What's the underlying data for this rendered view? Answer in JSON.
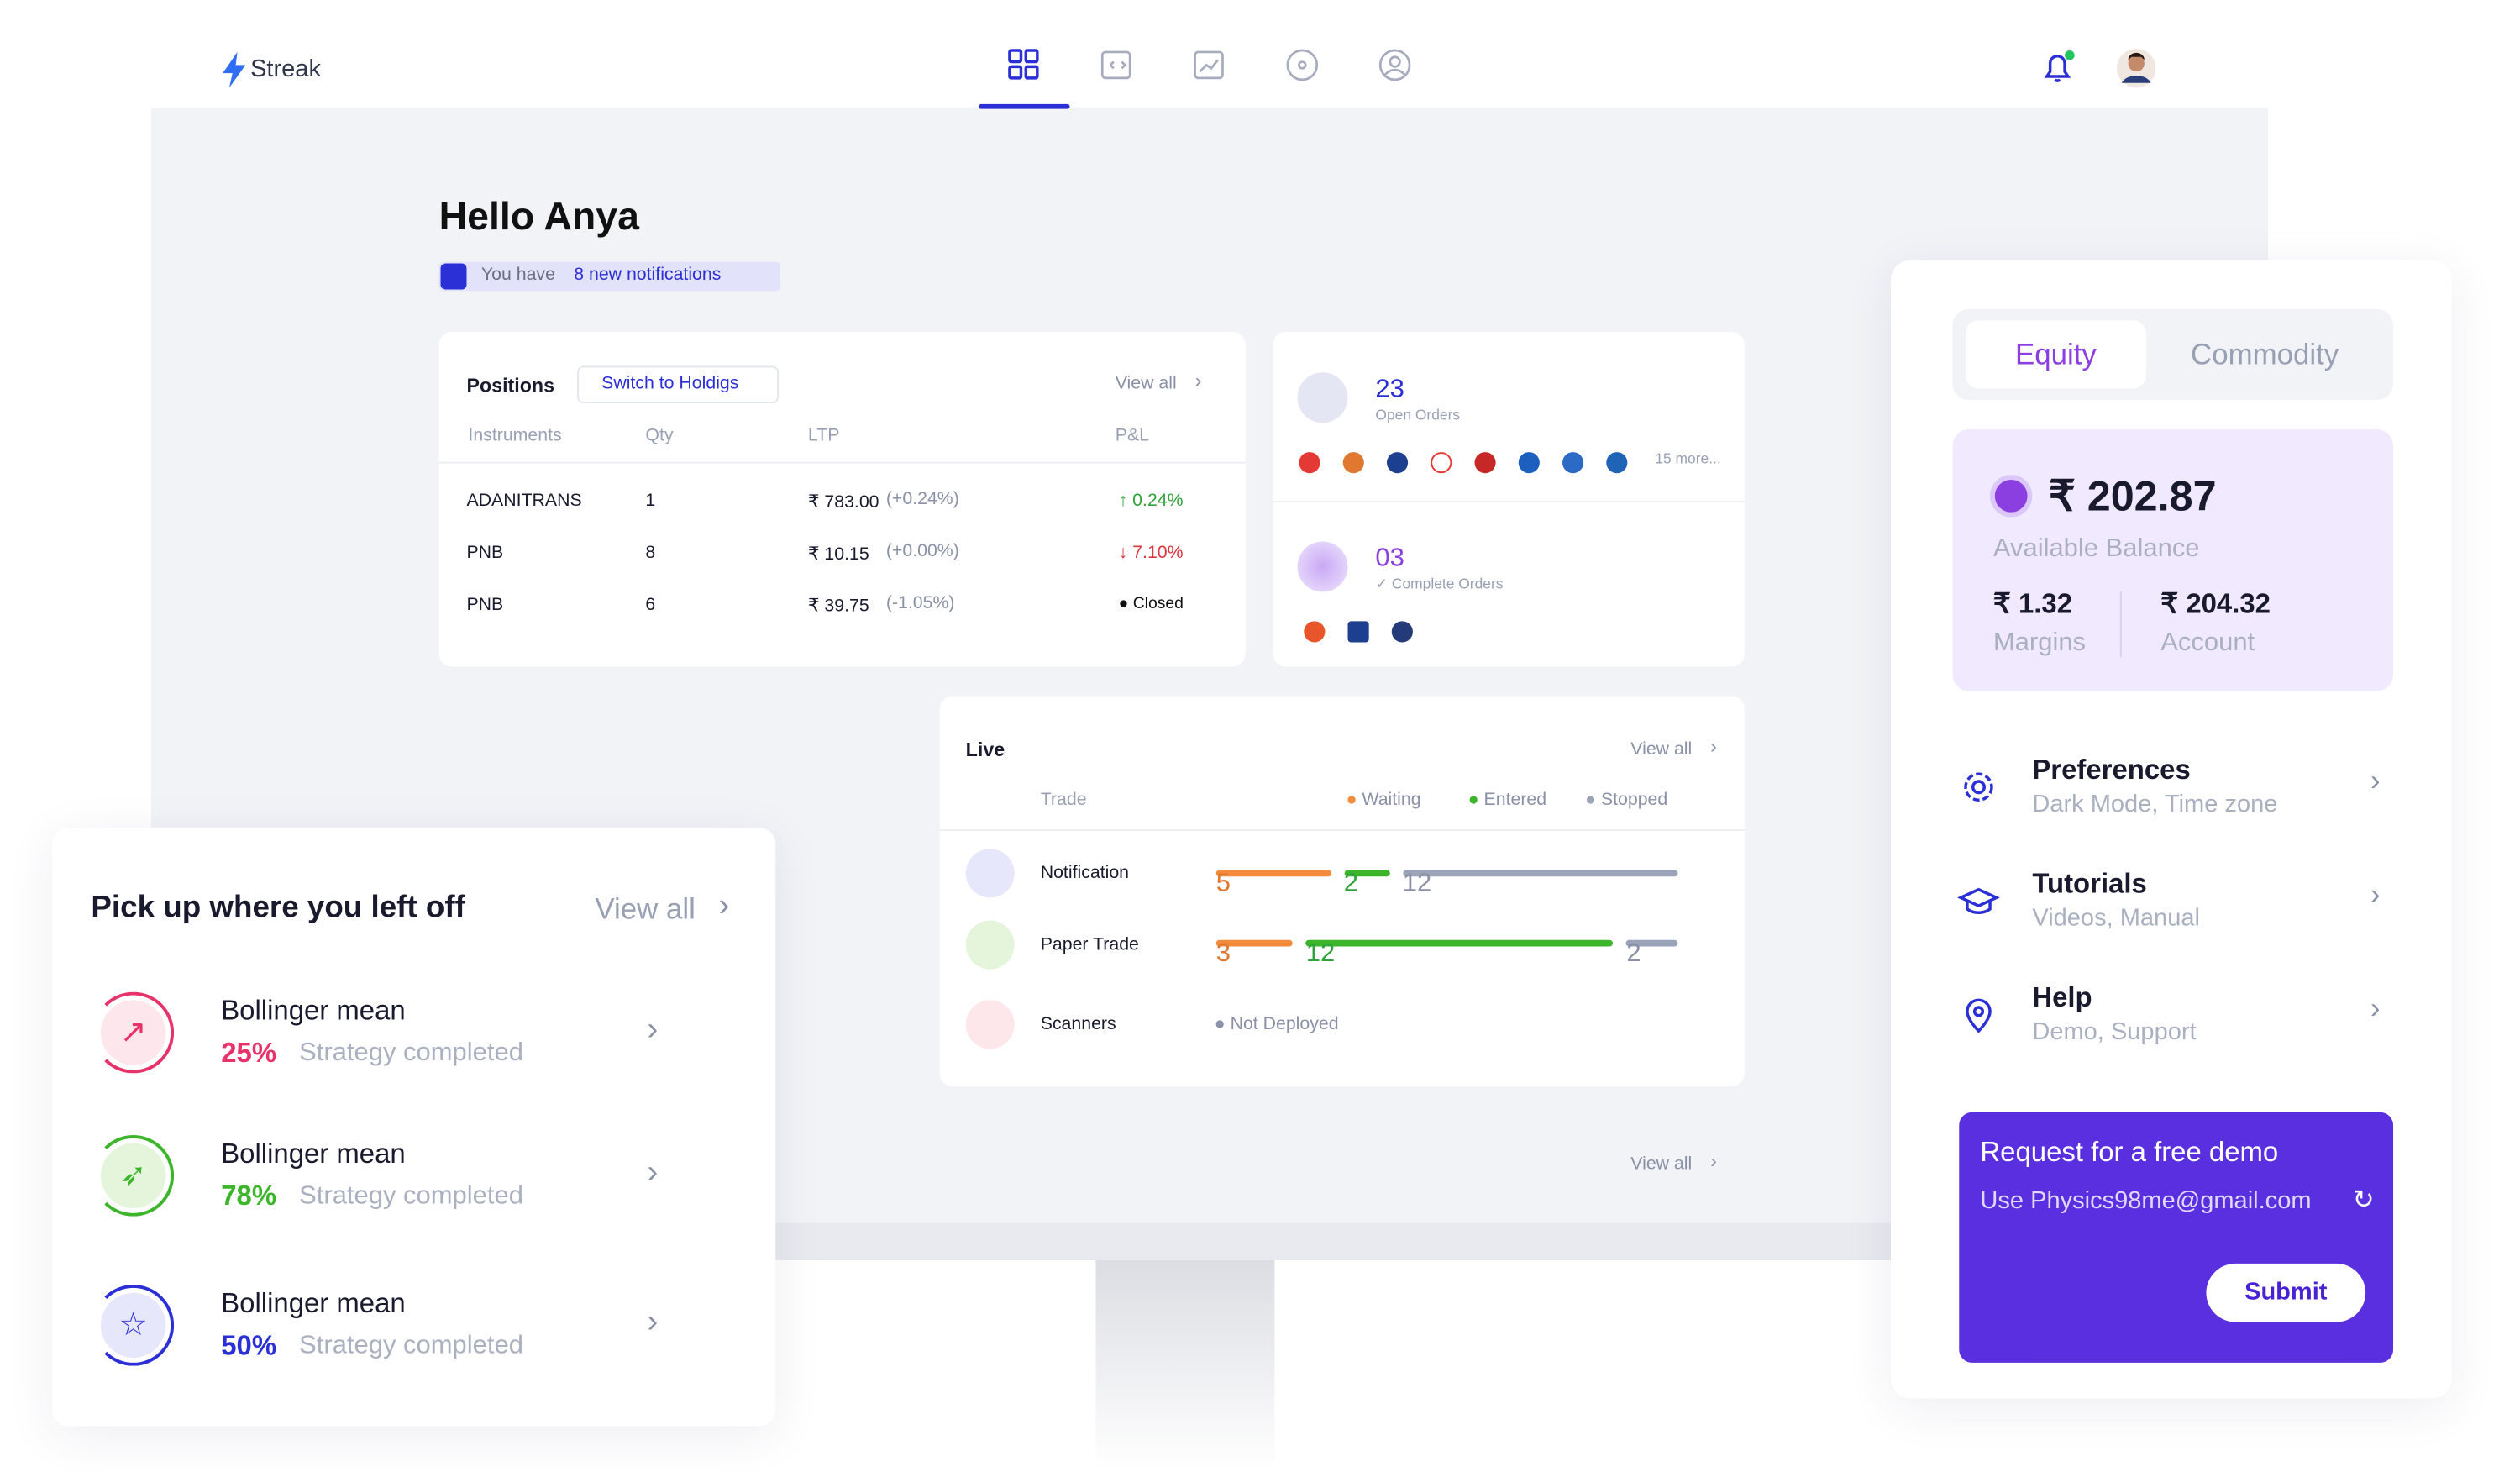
{
  "nav": {
    "brand": "Streak"
  },
  "greeting": {
    "title": "Hello Anya",
    "notice_prefix": "You have",
    "notice_link": "8 new notifications"
  },
  "positions": {
    "title": "Positions",
    "switch": "Switch to Holdigs",
    "view_all": "View all",
    "columns": [
      "Instruments",
      "Qty",
      "LTP",
      "P&L"
    ],
    "rows": [
      [
        "ADANITRANS",
        "1",
        "₹ 783.00",
        "(+0.24%)",
        "0.24%"
      ],
      [
        "PNB",
        "8",
        "₹ 10.15",
        "(+0.00%)",
        "7.10%"
      ],
      [
        "PNB",
        "6",
        "₹ 39.75",
        "(-1.05%)",
        "Closed"
      ]
    ]
  },
  "orders": {
    "open_count": "23",
    "open_label": "Open Orders",
    "more": "15 more...",
    "complete_count": "03",
    "complete_label": "Complete Orders"
  },
  "live": {
    "title": "Live",
    "view_all": "View all",
    "column": "Trade",
    "legend": [
      "Waiting",
      "Entered",
      "Stopped"
    ],
    "rows": [
      {
        "name": "Notification",
        "values": [
          5,
          2,
          12
        ]
      },
      {
        "name": "Paper Trade",
        "values": [
          3,
          12,
          2
        ]
      },
      {
        "name": "Scanners",
        "status": "Not Deployed"
      }
    ]
  },
  "footer_view_all": "View all",
  "pickup": {
    "title": "Pick up where you left off",
    "view_all": "View all",
    "items": [
      {
        "name": "Bollinger mean",
        "percent": "25%",
        "label": "Strategy completed"
      },
      {
        "name": "Bollinger mean",
        "percent": "78%",
        "label": "Strategy completed"
      },
      {
        "name": "Bollinger mean",
        "percent": "50%",
        "label": "Strategy completed"
      }
    ]
  },
  "account": {
    "tabs": [
      "Equity",
      "Commodity"
    ],
    "balance": "₹ 202.87",
    "balance_label": "Available Balance",
    "margins": "₹ 1.32",
    "margins_label": "Margins",
    "account": "₹ 204.32",
    "account_label": "Account"
  },
  "menu": [
    {
      "title": "Preferences",
      "subtitle": "Dark Mode, Time zone"
    },
    {
      "title": "Tutorials",
      "subtitle": "Videos, Manual"
    },
    {
      "title": "Help",
      "subtitle": "Demo, Support"
    }
  ],
  "demo": {
    "title": "Request for a free demo",
    "email": "Use Physics98me@gmail.com",
    "button": "Submit"
  }
}
